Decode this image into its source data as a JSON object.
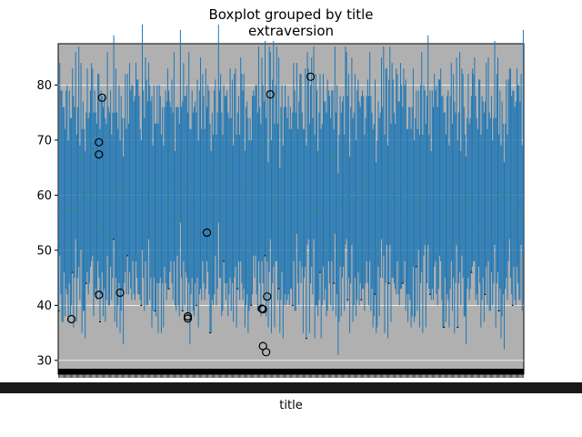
{
  "chart_data": {
    "type": "boxplot",
    "title": "Boxplot grouped by title",
    "subtitle": "extraversion",
    "xlabel": "title",
    "ylabel": "",
    "ylim": [
      27.5,
      87.5
    ],
    "y_ticks": [
      30,
      40,
      50,
      60,
      70,
      80
    ],
    "grid": true,
    "background_color": "#b0b0b0",
    "box_color": "#1f77b4",
    "median_color": "#2ca02c",
    "whisker_color": "#000000",
    "group_count": 440,
    "box_ranges": [
      [
        48,
        73
      ],
      [
        46,
        72
      ],
      [
        50,
        76
      ],
      [
        45,
        74
      ],
      [
        52,
        73
      ],
      [
        48,
        80
      ],
      [
        49,
        68
      ],
      [
        55,
        81
      ],
      [
        47,
        72
      ],
      [
        51,
        75
      ],
      [
        46,
        70
      ],
      [
        53,
        79
      ],
      [
        48,
        66
      ],
      [
        52,
        74
      ],
      [
        45,
        71
      ],
      [
        50,
        76
      ],
      [
        44,
        66
      ],
      [
        51,
        78
      ],
      [
        47,
        73
      ],
      [
        55,
        82
      ],
      [
        46,
        72
      ],
      [
        52,
        70
      ],
      [
        48,
        77
      ],
      [
        42,
        68
      ],
      [
        50,
        74
      ],
      [
        46,
        69
      ],
      [
        53,
        80
      ],
      [
        48,
        71
      ],
      [
        51,
        76
      ],
      [
        45,
        73
      ],
      [
        49,
        70
      ],
      [
        54,
        78
      ],
      [
        47,
        72
      ],
      [
        52,
        75
      ],
      [
        44,
        70
      ],
      [
        50,
        77
      ],
      [
        46,
        68
      ],
      [
        53,
        79
      ],
      [
        48,
        73
      ],
      [
        51,
        71
      ],
      [
        43,
        67
      ],
      [
        50,
        76
      ],
      [
        47,
        72
      ],
      [
        55,
        80
      ],
      [
        46,
        70
      ],
      [
        52,
        74
      ],
      [
        48,
        69
      ],
      [
        41,
        66
      ],
      [
        50,
        78
      ],
      [
        46,
        71
      ],
      [
        53,
        76
      ],
      [
        48,
        72
      ],
      [
        51,
        70
      ],
      [
        45,
        75
      ],
      [
        49,
        68
      ],
      [
        54,
        79
      ],
      [
        47,
        73
      ],
      [
        52,
        70
      ],
      [
        44,
        72
      ],
      [
        50,
        76
      ],
      [
        46,
        69
      ],
      [
        53,
        81
      ],
      [
        48,
        71
      ],
      [
        51,
        75
      ],
      [
        45,
        70
      ],
      [
        50,
        74
      ],
      [
        47,
        68
      ],
      [
        55,
        80
      ],
      [
        46,
        73
      ],
      [
        52,
        71
      ],
      [
        48,
        77
      ],
      [
        43,
        69
      ],
      [
        50,
        74
      ],
      [
        46,
        72
      ],
      [
        53,
        78
      ],
      [
        48,
        70
      ],
      [
        51,
        76
      ],
      [
        45,
        73
      ],
      [
        49,
        69
      ],
      [
        54,
        80
      ]
    ],
    "outliers": [
      {
        "x": 12,
        "y": 37.5
      },
      {
        "x": 38,
        "y": 69.6
      },
      {
        "x": 38,
        "y": 67.4
      },
      {
        "x": 41,
        "y": 77.7
      },
      {
        "x": 38,
        "y": 41.9
      },
      {
        "x": 58,
        "y": 42.3
      },
      {
        "x": 122,
        "y": 38.0
      },
      {
        "x": 122,
        "y": 37.6
      },
      {
        "x": 140,
        "y": 53.2
      },
      {
        "x": 192,
        "y": 39.4
      },
      {
        "x": 193,
        "y": 39.3
      },
      {
        "x": 193,
        "y": 32.6
      },
      {
        "x": 196,
        "y": 31.5
      },
      {
        "x": 197,
        "y": 41.6
      },
      {
        "x": 200,
        "y": 78.3
      },
      {
        "x": 238,
        "y": 81.5
      }
    ]
  }
}
